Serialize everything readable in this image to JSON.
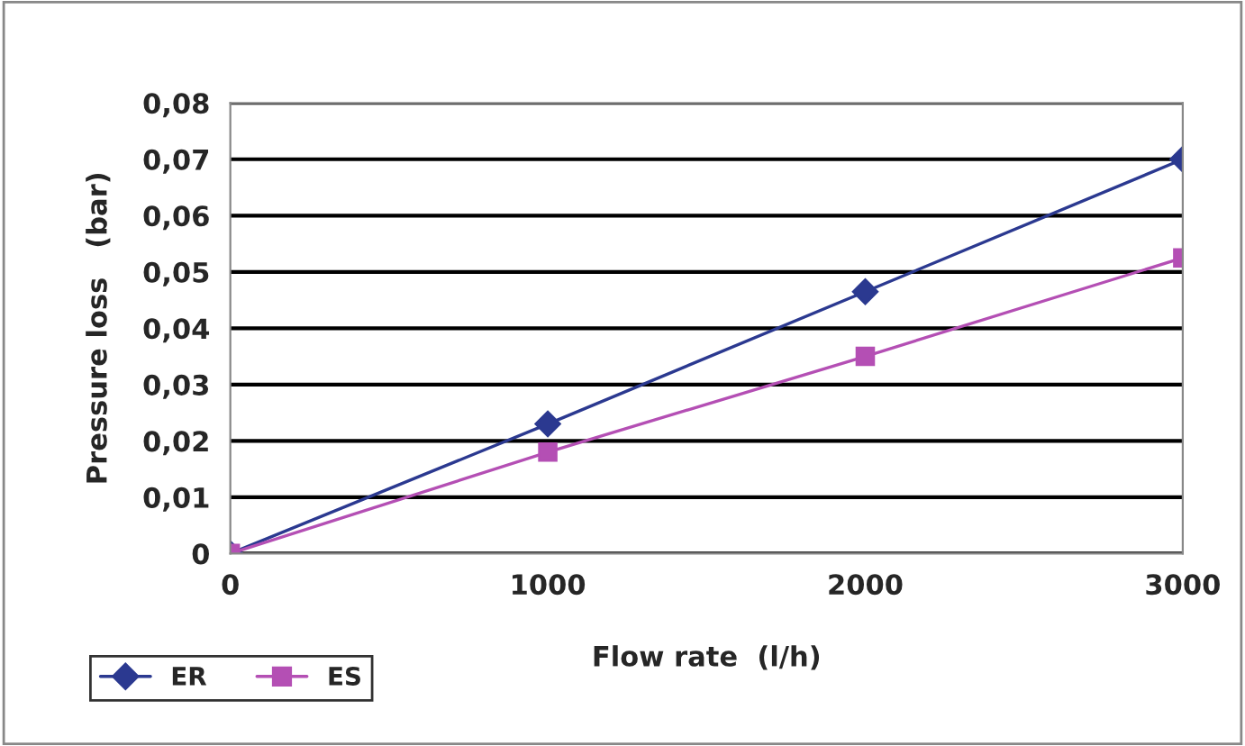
{
  "chart_data": {
    "type": "line",
    "xlabel": "Flow rate  (l/h)",
    "ylabel": "Pressure loss   (bar)",
    "x": [
      0,
      1000,
      2000,
      3000
    ],
    "series": [
      {
        "name": "ER",
        "color": "#2b3990",
        "marker": "diamond",
        "values": [
          0,
          0.023,
          0.0465,
          0.07
        ]
      },
      {
        "name": "ES",
        "color": "#b44fb4",
        "marker": "square",
        "values": [
          0,
          0.018,
          0.035,
          0.0525
        ]
      }
    ],
    "xlim": [
      0,
      3000
    ],
    "xticks": [
      0,
      1000,
      2000,
      3000
    ],
    "ylim": [
      0,
      0.08
    ],
    "yticks": [
      "0",
      {
        "value": 0.01,
        "label": "0,01"
      },
      {
        "value": 0.02,
        "label": "0,02"
      },
      {
        "value": 0.03,
        "label": "0,03"
      },
      {
        "value": 0.04,
        "label": "0,04"
      },
      {
        "value": 0.05,
        "label": "0,05"
      },
      {
        "value": 0.06,
        "label": "0,06"
      },
      {
        "value": 0.07,
        "label": "0,07"
      },
      {
        "value": 0.08,
        "label": "0,08"
      }
    ],
    "grid": "y",
    "legend": "bottom left",
    "line_style": "solid"
  }
}
